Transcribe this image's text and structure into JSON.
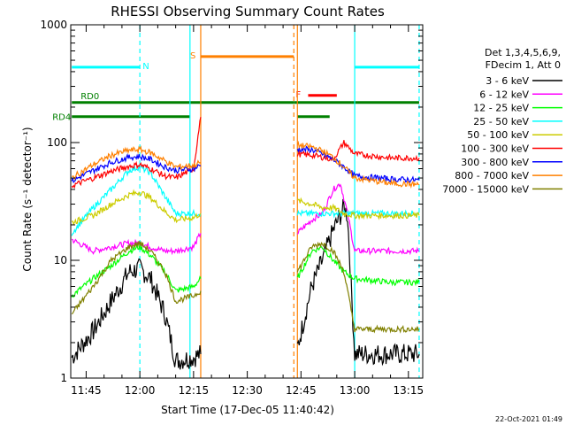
{
  "chart_data": {
    "type": "line",
    "title": "RHESSI Observing Summary Count Rates",
    "xlabel": "Start Time (17-Dec-05 11:40:42)",
    "ylabel": "Count Rate (s⁻¹ detector⁻¹)",
    "yscale": "log",
    "ylim": [
      1,
      1000
    ],
    "xlim": [
      "11:40:42",
      "13:19"
    ],
    "x_ticks": [
      "11:45",
      "12:00",
      "12:15",
      "12:30",
      "12:45",
      "13:00",
      "13:15"
    ],
    "y_ticks": [
      "1",
      "10",
      "100",
      "1000"
    ],
    "legend_header": [
      "Det 1,3,4,5,6,9,",
      "FDecim 1, Att 0"
    ],
    "legend_placement": "right",
    "footer": "22-Oct-2021 01:49",
    "series": [
      {
        "name": "3 - 6 keV",
        "color": "#000000",
        "points": [
          [
            "11:41",
            1.5
          ],
          [
            "11:47",
            2.5
          ],
          [
            "11:52",
            4.5
          ],
          [
            "11:57",
            8
          ],
          [
            "12:00",
            8.5
          ],
          [
            "12:03",
            7
          ],
          [
            "12:07",
            3.5
          ],
          [
            "12:10",
            1.4
          ],
          [
            "12:15",
            1.5
          ],
          [
            "12:17",
            1.6
          ],
          [
            "12:44",
            1.8
          ],
          [
            "12:48",
            6
          ],
          [
            "12:51",
            10
          ],
          [
            "12:54",
            18
          ],
          [
            "12:57",
            28
          ],
          [
            "12:58",
            24
          ],
          [
            "13:00",
            1.6
          ],
          [
            "13:10",
            1.6
          ],
          [
            "13:18",
            1.6
          ]
        ]
      },
      {
        "name": "6 - 12 keV",
        "color": "#ff00ff",
        "points": [
          [
            "11:41",
            15
          ],
          [
            "11:47",
            12
          ],
          [
            "11:52",
            13
          ],
          [
            "11:57",
            14
          ],
          [
            "12:00",
            14
          ],
          [
            "12:03",
            13
          ],
          [
            "12:07",
            12
          ],
          [
            "12:10",
            12
          ],
          [
            "12:15",
            13
          ],
          [
            "12:17",
            17
          ],
          [
            "12:44",
            17
          ],
          [
            "12:48",
            22
          ],
          [
            "12:51",
            25
          ],
          [
            "12:54",
            40
          ],
          [
            "12:56",
            45
          ],
          [
            "12:58",
            25
          ],
          [
            "13:00",
            12
          ],
          [
            "13:10",
            12
          ],
          [
            "13:18",
            12
          ]
        ]
      },
      {
        "name": "12 - 25 keV",
        "color": "#00ff00",
        "points": [
          [
            "11:41",
            5
          ],
          [
            "11:47",
            7
          ],
          [
            "11:52",
            9
          ],
          [
            "11:57",
            12
          ],
          [
            "12:00",
            13
          ],
          [
            "12:03",
            11
          ],
          [
            "12:07",
            8
          ],
          [
            "12:10",
            5.5
          ],
          [
            "12:15",
            6
          ],
          [
            "12:17",
            7
          ],
          [
            "12:44",
            7
          ],
          [
            "12:48",
            12
          ],
          [
            "12:51",
            13
          ],
          [
            "12:54",
            10
          ],
          [
            "12:57",
            8
          ],
          [
            "13:00",
            7
          ],
          [
            "13:10",
            6.5
          ],
          [
            "13:18",
            6.5
          ]
        ]
      },
      {
        "name": "25 - 50 keV",
        "color": "#00ffff",
        "points": [
          [
            "11:41",
            17
          ],
          [
            "11:47",
            28
          ],
          [
            "11:52",
            40
          ],
          [
            "11:57",
            58
          ],
          [
            "12:00",
            62
          ],
          [
            "12:03",
            55
          ],
          [
            "12:07",
            35
          ],
          [
            "12:10",
            25
          ],
          [
            "12:15",
            25
          ],
          [
            "12:17",
            25
          ],
          [
            "12:44",
            25
          ],
          [
            "12:48",
            25
          ],
          [
            "12:51",
            25
          ],
          [
            "12:54",
            25
          ],
          [
            "12:57",
            25
          ],
          [
            "13:00",
            25
          ],
          [
            "13:10",
            25
          ],
          [
            "13:18",
            25
          ]
        ]
      },
      {
        "name": "50 - 100 keV",
        "color": "#cccc00",
        "points": [
          [
            "11:41",
            21
          ],
          [
            "11:47",
            24
          ],
          [
            "11:52",
            30
          ],
          [
            "11:57",
            36
          ],
          [
            "12:00",
            38
          ],
          [
            "12:03",
            34
          ],
          [
            "12:07",
            26
          ],
          [
            "12:10",
            22
          ],
          [
            "12:15",
            23
          ],
          [
            "12:17",
            25
          ],
          [
            "12:44",
            32
          ],
          [
            "12:48",
            30
          ],
          [
            "12:51",
            28
          ],
          [
            "12:54",
            28
          ],
          [
            "12:57",
            25
          ],
          [
            "13:00",
            24
          ],
          [
            "13:10",
            24
          ],
          [
            "13:18",
            24
          ]
        ]
      },
      {
        "name": "100 - 300 keV",
        "color": "#ff0000",
        "points": [
          [
            "11:41",
            43
          ],
          [
            "11:47",
            50
          ],
          [
            "11:52",
            57
          ],
          [
            "11:57",
            63
          ],
          [
            "12:00",
            65
          ],
          [
            "12:03",
            60
          ],
          [
            "12:07",
            52
          ],
          [
            "12:10",
            50
          ],
          [
            "12:15",
            60
          ],
          [
            "12:17",
            165
          ],
          [
            "12:44",
            80
          ],
          [
            "12:48",
            78
          ],
          [
            "12:51",
            75
          ],
          [
            "12:54",
            72
          ],
          [
            "12:57",
            100
          ],
          [
            "13:00",
            80
          ],
          [
            "13:10",
            74
          ],
          [
            "13:18",
            74
          ]
        ]
      },
      {
        "name": "300 - 800 keV",
        "color": "#0000ff",
        "points": [
          [
            "11:41",
            47
          ],
          [
            "11:47",
            58
          ],
          [
            "11:52",
            68
          ],
          [
            "11:57",
            75
          ],
          [
            "12:00",
            76
          ],
          [
            "12:03",
            72
          ],
          [
            "12:07",
            62
          ],
          [
            "12:10",
            58
          ],
          [
            "12:15",
            60
          ],
          [
            "12:17",
            64
          ],
          [
            "12:44",
            88
          ],
          [
            "12:48",
            87
          ],
          [
            "12:51",
            80
          ],
          [
            "12:54",
            72
          ],
          [
            "12:57",
            62
          ],
          [
            "13:00",
            52
          ],
          [
            "13:10",
            49
          ],
          [
            "13:18",
            48
          ]
        ]
      },
      {
        "name": "800 - 7000 keV",
        "color": "#ff8000",
        "points": [
          [
            "11:41",
            50
          ],
          [
            "11:47",
            65
          ],
          [
            "11:52",
            78
          ],
          [
            "11:57",
            86
          ],
          [
            "12:00",
            87
          ],
          [
            "12:03",
            82
          ],
          [
            "12:07",
            70
          ],
          [
            "12:10",
            62
          ],
          [
            "12:15",
            64
          ],
          [
            "12:17",
            68
          ],
          [
            "12:44",
            95
          ],
          [
            "12:48",
            92
          ],
          [
            "12:51",
            85
          ],
          [
            "12:54",
            75
          ],
          [
            "12:57",
            62
          ],
          [
            "13:00",
            50
          ],
          [
            "13:10",
            45
          ],
          [
            "13:18",
            44
          ]
        ]
      },
      {
        "name": "7000 - 15000 keV",
        "color": "#808000",
        "points": [
          [
            "11:41",
            3.5
          ],
          [
            "11:47",
            6
          ],
          [
            "11:52",
            10
          ],
          [
            "11:57",
            13
          ],
          [
            "12:00",
            14
          ],
          [
            "12:03",
            12
          ],
          [
            "12:07",
            8
          ],
          [
            "12:10",
            4.5
          ],
          [
            "12:15",
            5
          ],
          [
            "12:17",
            5.5
          ],
          [
            "12:44",
            8
          ],
          [
            "12:48",
            13
          ],
          [
            "12:51",
            14
          ],
          [
            "12:54",
            12
          ],
          [
            "12:57",
            8
          ],
          [
            "13:00",
            2.6
          ],
          [
            "13:10",
            2.6
          ],
          [
            "13:18",
            2.6
          ]
        ]
      }
    ],
    "flags": [
      {
        "label": "N",
        "color": "#00ffff",
        "level": 0.88,
        "intervals": [
          [
            "11:41",
            "12:00"
          ],
          [
            "13:00",
            "13:18"
          ]
        ]
      },
      {
        "label": "S",
        "color": "#ff8000",
        "level": 0.91,
        "intervals": [
          [
            "12:17",
            "12:43"
          ]
        ]
      },
      {
        "label": "F",
        "color": "#ff0000",
        "level": 0.8,
        "intervals": [
          [
            "12:47",
            "12:55"
          ]
        ]
      },
      {
        "label": "RD0",
        "color": "#008000",
        "level": 0.78,
        "intervals": [
          [
            "11:41",
            "12:14"
          ],
          [
            "12:14",
            "12:43"
          ],
          [
            "12:43",
            "12:59"
          ],
          [
            "12:59",
            "13:18"
          ]
        ]
      },
      {
        "label": "RD4",
        "color": "#008000",
        "level": 0.74,
        "intervals": [
          [
            "11:41",
            "12:14"
          ],
          [
            "12:44",
            "12:53"
          ]
        ]
      }
    ],
    "vlines": [
      {
        "time": "12:00",
        "color": "#00ffff",
        "style": "dashed"
      },
      {
        "time": "12:14",
        "color": "#00ffff",
        "style": "solid"
      },
      {
        "time": "12:17",
        "color": "#ff8000",
        "style": "solid"
      },
      {
        "time": "12:43",
        "color": "#ff8000",
        "style": "dashed"
      },
      {
        "time": "12:44",
        "color": "#ff8000",
        "style": "solid"
      },
      {
        "time": "13:00",
        "color": "#00ffff",
        "style": "solid"
      },
      {
        "time": "13:18",
        "color": "#00ffff",
        "style": "dashed"
      }
    ]
  }
}
